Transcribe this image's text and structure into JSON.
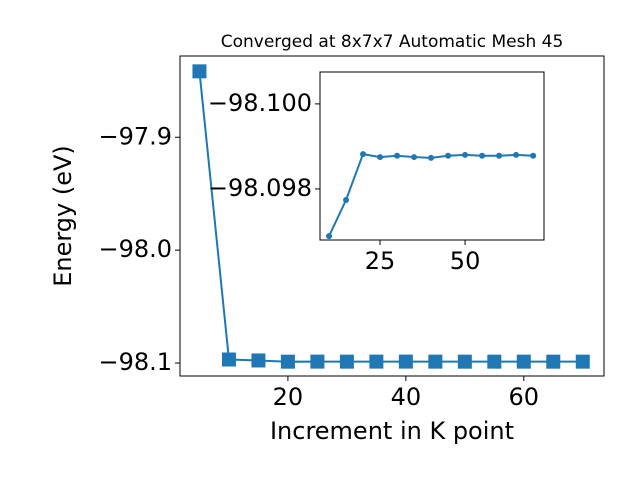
{
  "chart_data": [
    {
      "type": "line",
      "title": "Converged at 8x7x7 Automatic Mesh 45",
      "x_label": "Increment in K point",
      "y_label": "Energy (eV)",
      "x": [
        5,
        10,
        15,
        20,
        25,
        30,
        35,
        40,
        45,
        50,
        55,
        60,
        65,
        70
      ],
      "series": [
        {
          "name": null,
          "color": "#1f77b4",
          "marker": "square",
          "values": [
            -97.8416,
            -98.09689,
            -98.09774,
            -98.09882,
            -98.09875,
            -98.09878,
            -98.09875,
            -98.09873,
            -98.09878,
            -98.0988,
            -98.09878,
            -98.09878,
            -98.0988,
            -98.09878
          ]
        }
      ],
      "xlim": [
        1.7,
        73.6
      ],
      "xticks": [
        20,
        40,
        60
      ],
      "ylim": [
        -98.1115,
        -97.828
      ],
      "yticks": [
        {
          "value": -98.1,
          "label": "−98.1"
        },
        {
          "value": -98.0,
          "label": "−98.0"
        },
        {
          "value": -97.9,
          "label": "−97.9"
        }
      ],
      "grid": false
    },
    {
      "type": "line",
      "x": [
        10,
        15,
        20,
        25,
        30,
        35,
        40,
        45,
        50,
        55,
        60,
        65,
        70
      ],
      "series": [
        {
          "name": null,
          "color": "#1f77b4",
          "marker": "circle",
          "values": [
            -98.09689,
            -98.09774,
            -98.09882,
            -98.09875,
            -98.09878,
            -98.09875,
            -98.09873,
            -98.09878,
            -98.0988,
            -98.09878,
            -98.09878,
            -98.0988,
            -98.09878
          ]
        }
      ],
      "xlim": [
        7.35,
        73.2
      ],
      "xticks": [
        25,
        50
      ],
      "ylim": [
        -98.0968,
        -98.10075
      ],
      "yticks": [
        {
          "value": -98.1,
          "label": "−98.100"
        },
        {
          "value": -98.098,
          "label": "−98.098"
        }
      ],
      "grid": false
    }
  ]
}
